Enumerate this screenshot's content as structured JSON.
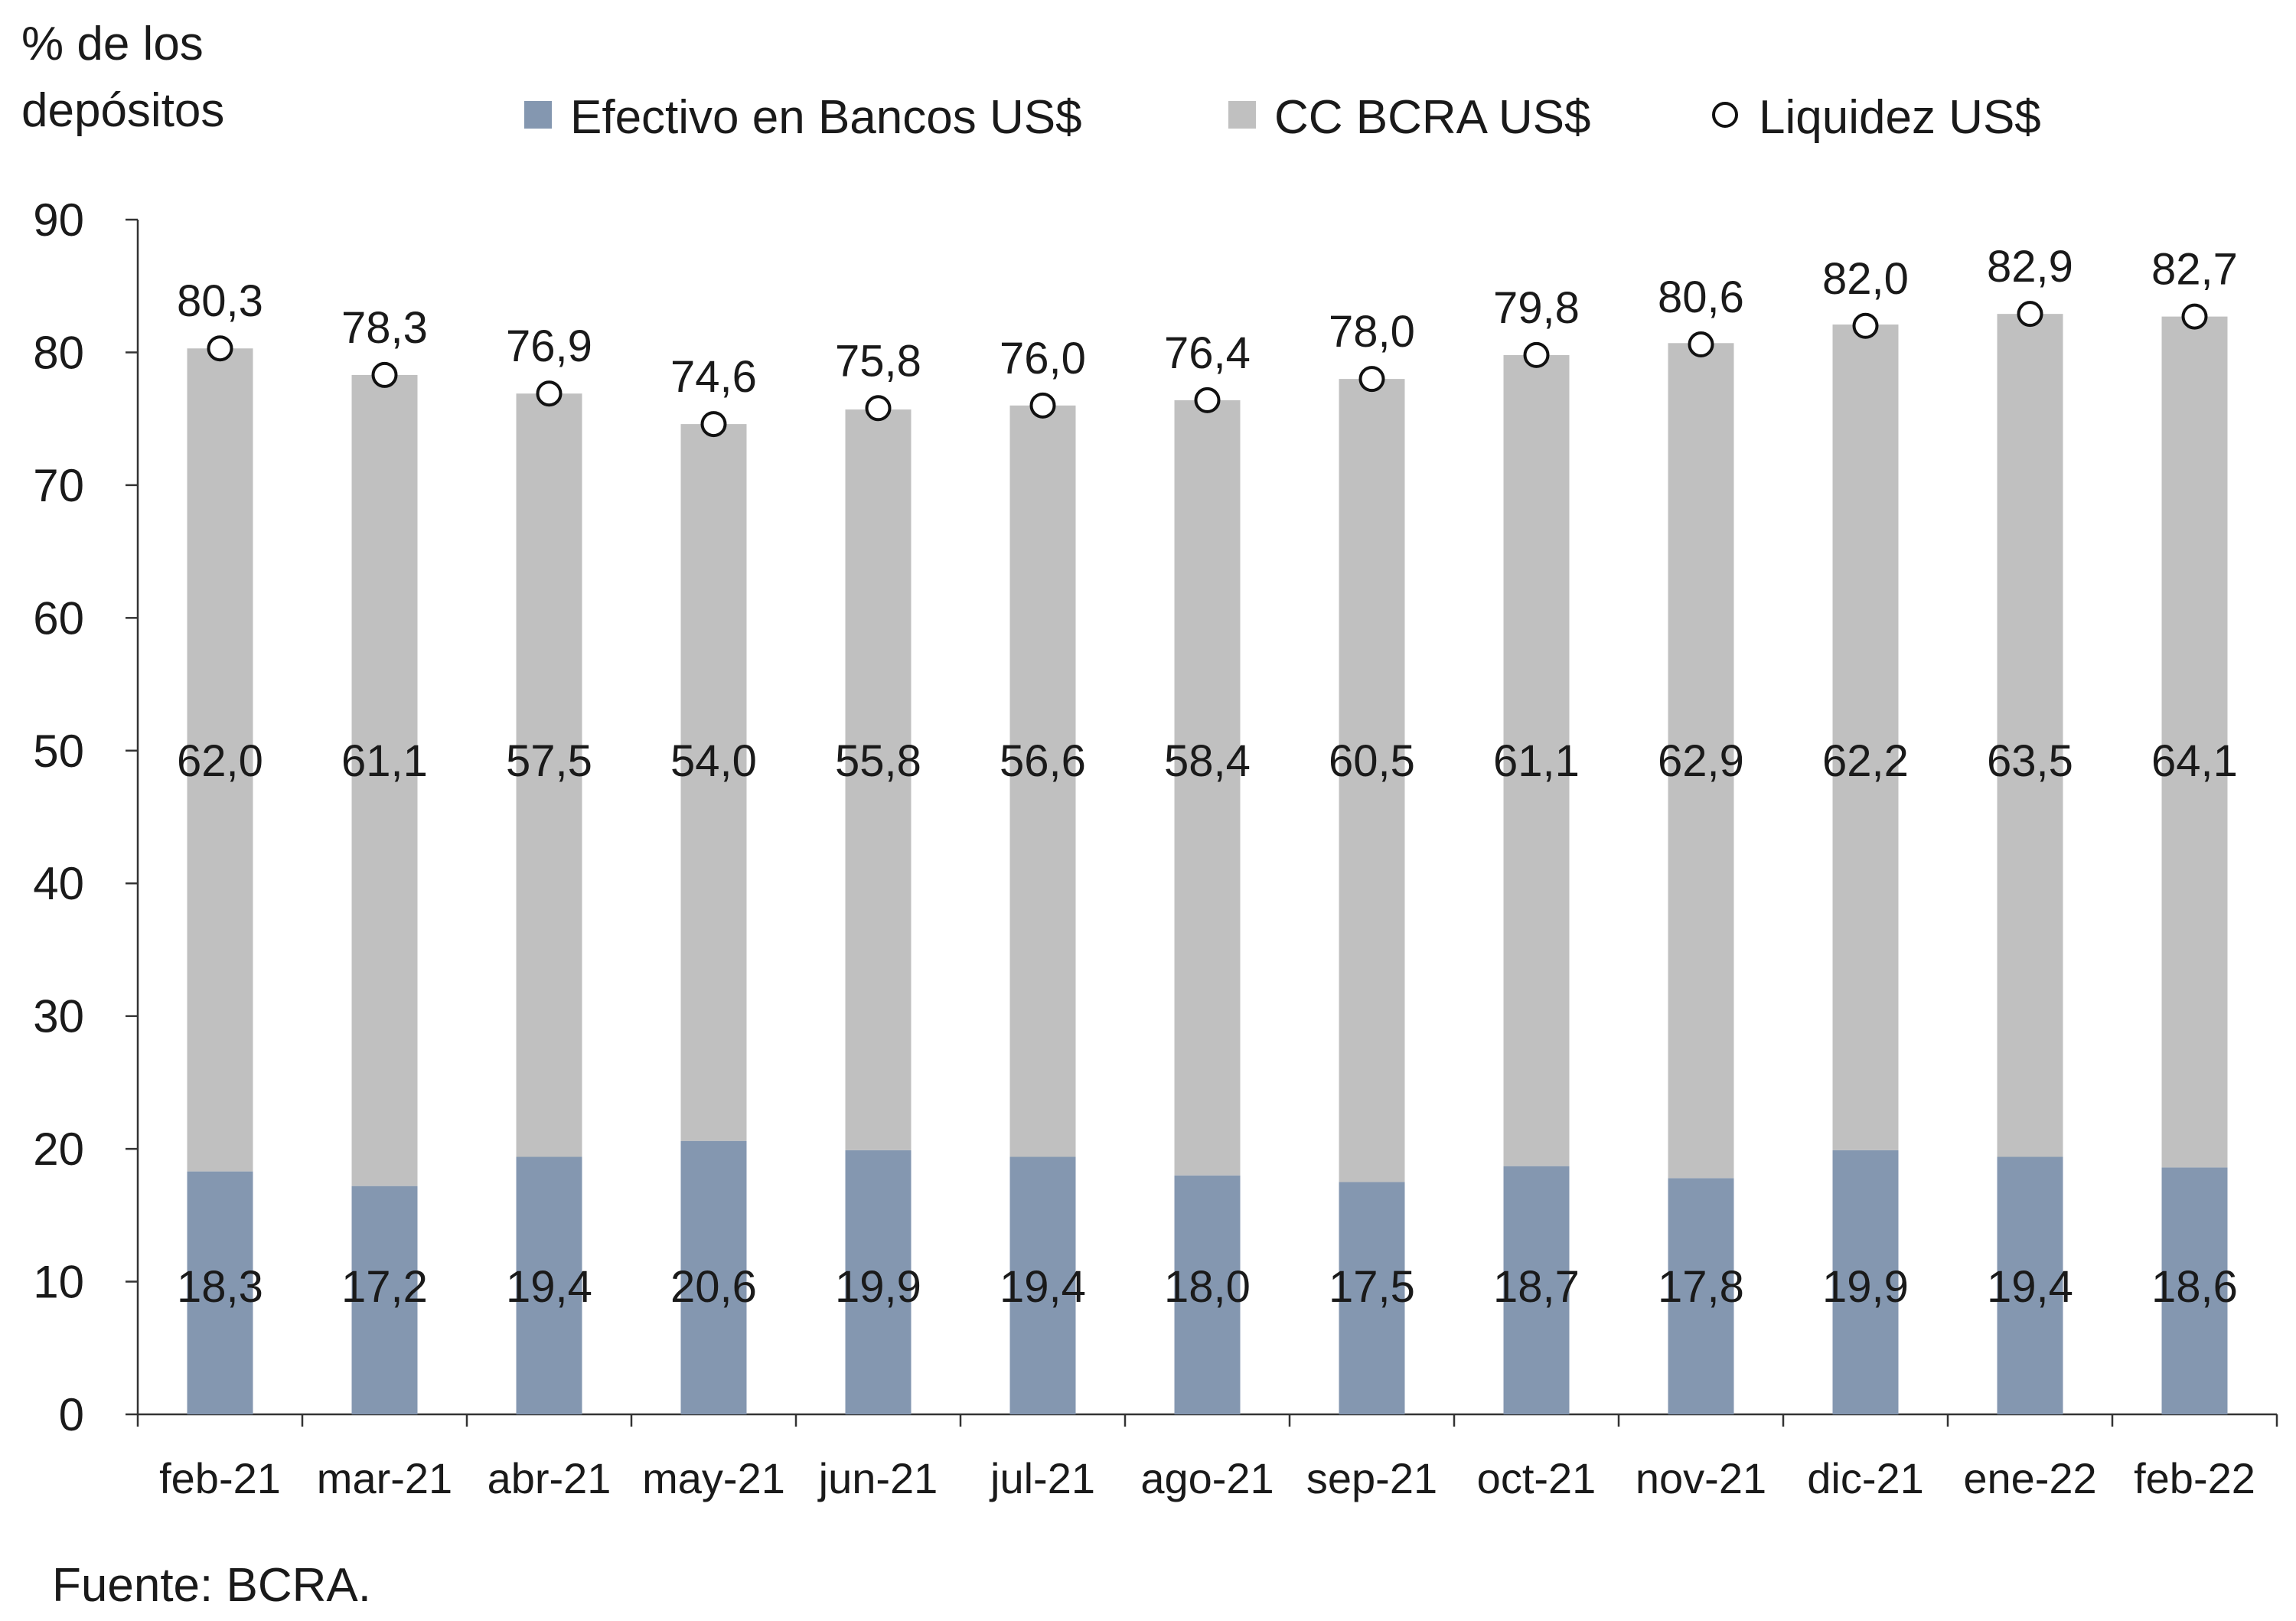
{
  "chart_data": {
    "type": "bar",
    "stacked": true,
    "y_unit_label": [
      "% de los",
      "depósitos"
    ],
    "ylim": [
      0,
      90
    ],
    "yticks": [
      0,
      10,
      20,
      30,
      40,
      50,
      60,
      70,
      80,
      90
    ],
    "grid": false,
    "legend_placement": "top",
    "categories": [
      "feb-21",
      "mar-21",
      "abr-21",
      "may-21",
      "jun-21",
      "jul-21",
      "ago-21",
      "sep-21",
      "oct-21",
      "nov-21",
      "dic-21",
      "ene-22",
      "feb-22"
    ],
    "series": [
      {
        "name": "Efectivo en Bancos US$",
        "kind": "bar",
        "color": "#8497b0",
        "values": [
          18.3,
          17.2,
          19.4,
          20.6,
          19.9,
          19.4,
          18.0,
          17.5,
          18.7,
          17.8,
          19.9,
          19.4,
          18.6
        ],
        "labels": [
          "18,3",
          "17,2",
          "19,4",
          "20,6",
          "19,9",
          "19,4",
          "18,0",
          "17,5",
          "18,7",
          "17,8",
          "19,9",
          "19,4",
          "18,6"
        ]
      },
      {
        "name": "CC BCRA US$",
        "kind": "bar",
        "color": "#c0c0c0",
        "values": [
          62.0,
          61.1,
          57.5,
          54.0,
          55.8,
          56.6,
          58.4,
          60.5,
          61.1,
          62.9,
          62.2,
          63.5,
          64.1
        ],
        "labels": [
          "62,0",
          "61,1",
          "57,5",
          "54,0",
          "55,8",
          "56,6",
          "58,4",
          "60,5",
          "61,1",
          "62,9",
          "62,2",
          "63,5",
          "64,1"
        ]
      },
      {
        "name": "Liquidez US$",
        "kind": "marker",
        "color": "#ffffff",
        "values": [
          80.3,
          78.3,
          76.9,
          74.6,
          75.8,
          76.0,
          76.4,
          78.0,
          79.8,
          80.6,
          82.0,
          82.9,
          82.7
        ],
        "labels": [
          "80,3",
          "78,3",
          "76,9",
          "74,6",
          "75,8",
          "76,0",
          "76,4",
          "78,0",
          "79,8",
          "80,6",
          "82,0",
          "82,9",
          "82,7"
        ]
      }
    ],
    "source": "Fuente: BCRA."
  }
}
